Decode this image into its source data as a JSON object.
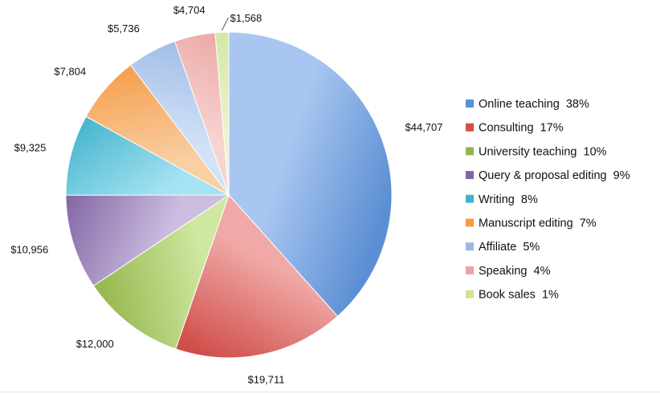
{
  "chart_data": {
    "type": "pie",
    "slices": [
      {
        "label": "Online teaching",
        "value": 44707,
        "percent": "38%",
        "value_label": "$44,707",
        "color": "#5b8fd4",
        "light": "#a9c6f0"
      },
      {
        "label": "Consulting",
        "value": 19711,
        "percent": "17%",
        "value_label": "$19,711",
        "color": "#d04d4a",
        "light": "#f0a9a6"
      },
      {
        "label": "University teaching",
        "value": 12000,
        "percent": "10%",
        "value_label": "$12,000",
        "color": "#93b54a",
        "light": "#cfe7a0"
      },
      {
        "label": "Query & proposal editing",
        "value": 10956,
        "percent": "9%",
        "value_label": "$10,956",
        "color": "#8064a2",
        "light": "#cbbde0"
      },
      {
        "label": "Writing",
        "value": 9325,
        "percent": "8%",
        "value_label": "$9,325",
        "color": "#3fb2cb",
        "light": "#a6e3f2"
      },
      {
        "label": "Manuscript editing",
        "value": 7804,
        "percent": "7%",
        "value_label": "$7,804",
        "color": "#f59a44",
        "light": "#f9cfa4"
      },
      {
        "label": "Affiliate",
        "value": 5736,
        "percent": "5%",
        "value_label": "$5,736",
        "color": "#9bb8e4",
        "light": "#d2e2f7"
      },
      {
        "label": "Speaking",
        "value": 4704,
        "percent": "4%",
        "value_label": "$4,704",
        "color": "#e9a3a0",
        "light": "#f7d3d1"
      },
      {
        "label": "Book sales",
        "value": 1568,
        "percent": "1%",
        "value_label": "$1,568",
        "color": "#cfe39a",
        "light": "#eaf5cf"
      }
    ],
    "legend_position": "right",
    "start_angle": "12 o'clock",
    "direction": "clockwise"
  }
}
